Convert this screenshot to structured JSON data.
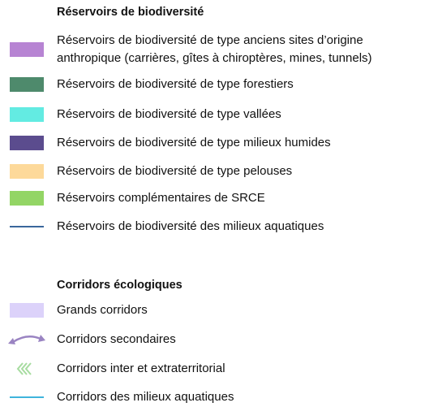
{
  "sections": [
    {
      "title": "Réservoirs de biodiversité",
      "items": [
        {
          "lines": [
            "Réservoirs de biodiversité de type anciens sites d’origine",
            "anthropique (carrières, gîtes à chiroptères, mines, tunnels)"
          ]
        },
        {
          "lines": [
            "Réservoirs de biodiversité de type forestiers"
          ]
        },
        {
          "lines": [
            "Réservoirs de biodiversité de type vallées"
          ]
        },
        {
          "lines": [
            "Réservoirs de biodiversité de type milieux humides"
          ]
        },
        {
          "lines": [
            "Réservoirs de biodiversité de type pelouses"
          ]
        },
        {
          "lines": [
            "Réservoirs complémentaires de SRCE"
          ]
        },
        {
          "lines": [
            "Réservoirs de biodiversité des milieux aquatiques"
          ]
        }
      ]
    },
    {
      "title": "Corridors écologiques",
      "items": [
        {
          "lines": [
            "Grands corridors"
          ]
        },
        {
          "lines": [
            "Corridors secondaires"
          ]
        },
        {
          "lines": [
            "Corridors inter et extraterritorial"
          ]
        },
        {
          "lines": [
            "Corridors des milieux aquatiques"
          ]
        }
      ]
    }
  ]
}
